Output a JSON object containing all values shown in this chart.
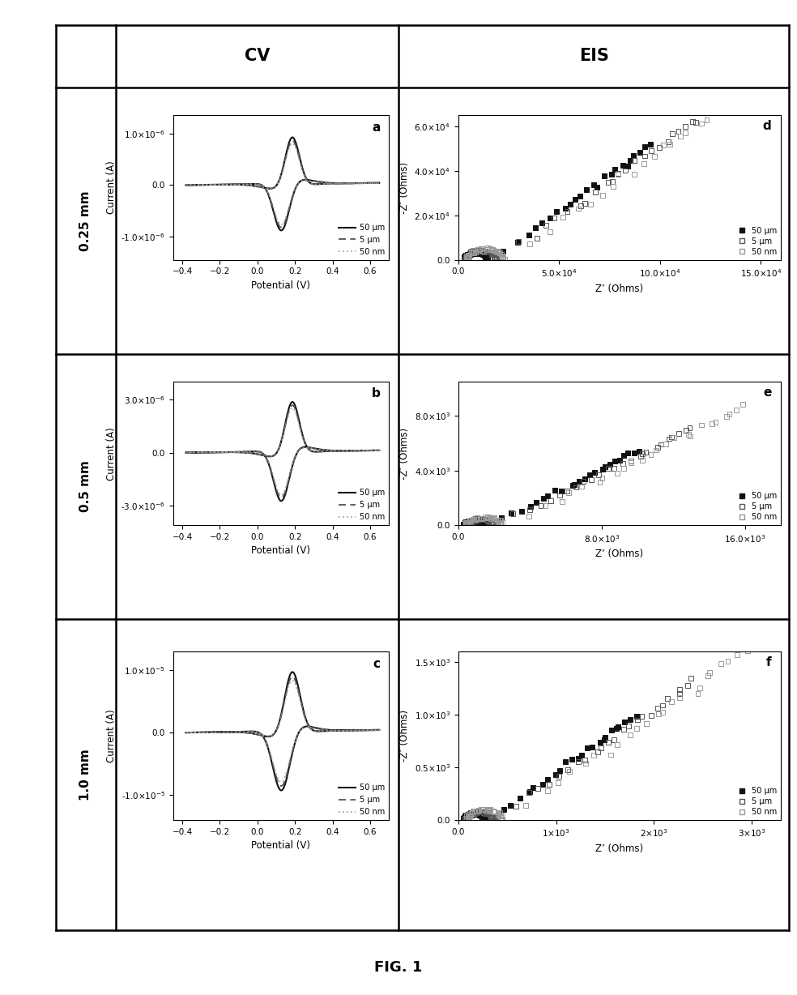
{
  "fig_width": 9.84,
  "fig_height": 12.28,
  "title_cv": "CV",
  "title_eis": "EIS",
  "row_labels": [
    "0.25 mm",
    "0.5 mm",
    "1.0 mm"
  ],
  "legend_labels_cv": [
    "50 μm",
    "5 μm",
    "50 nm"
  ],
  "legend_labels_eis": [
    "50 μm",
    "5 μm",
    "50 nm"
  ],
  "panel_labels_cv": [
    "a",
    "b",
    "c"
  ],
  "panel_labels_eis": [
    "d",
    "e",
    "f"
  ],
  "cv_xlabel": "Potential (V)",
  "cv_ylabel": "Current (A)",
  "eis_xlabel": "Z’ (Ohms)",
  "eis_ylabel": "-Z″ (Ohms)",
  "background_color": "#ffffff"
}
